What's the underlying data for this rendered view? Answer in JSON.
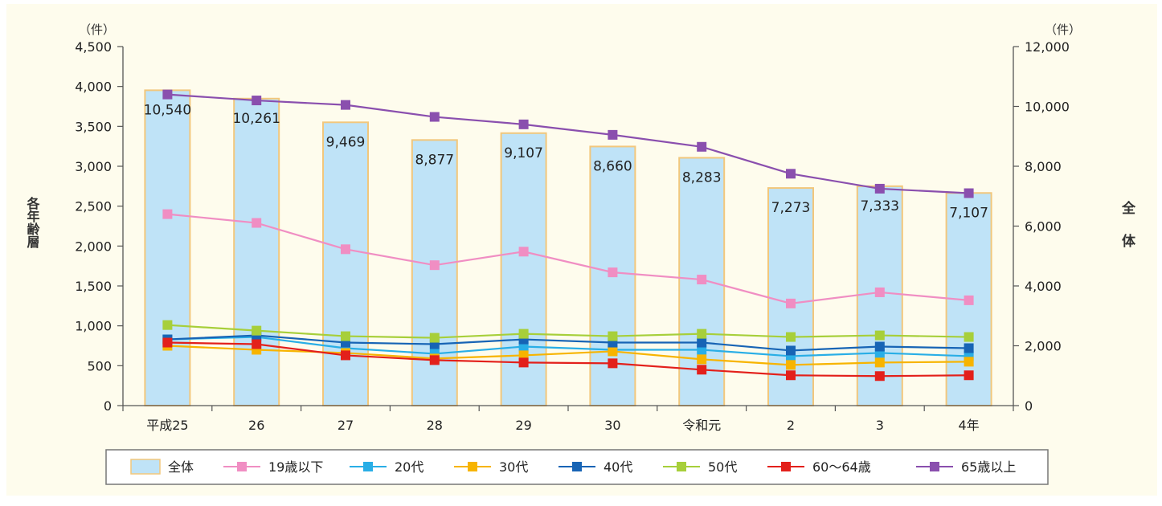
{
  "chart_data": {
    "type": "bar+line",
    "categories": [
      "平成25",
      "26",
      "27",
      "28",
      "29",
      "30",
      "令和元",
      "2",
      "3",
      "4年"
    ],
    "left_axis": {
      "unit": "（件）",
      "title": "各年齢層",
      "ylim": [
        0,
        4500
      ],
      "ticks": [
        0,
        500,
        1000,
        1500,
        2000,
        2500,
        3000,
        3500,
        4000,
        4500
      ],
      "tick_labels": [
        "0",
        "500",
        "1,000",
        "1,500",
        "2,000",
        "2,500",
        "3,000",
        "3,500",
        "4,000",
        "4,500"
      ]
    },
    "right_axis": {
      "unit": "（件）",
      "title": "全体",
      "ylim": [
        0,
        12000
      ],
      "ticks": [
        0,
        2000,
        4000,
        6000,
        8000,
        10000,
        12000
      ],
      "tick_labels": [
        "0",
        "2,000",
        "4,000",
        "6,000",
        "8,000",
        "10,000",
        "12,000"
      ]
    },
    "bars": {
      "name": "全体",
      "axis": "right",
      "color": "#bfe3f7",
      "border": "#f2c77c",
      "values": [
        10540,
        10261,
        9469,
        8877,
        9107,
        8660,
        8283,
        7273,
        7333,
        7107
      ],
      "labels": [
        "10,540",
        "10,261",
        "9,469",
        "8,877",
        "9,107",
        "8,660",
        "8,283",
        "7,273",
        "7,333",
        "7,107"
      ]
    },
    "series": [
      {
        "name": "19歳以下",
        "color": "#f08ec3",
        "values": [
          2400,
          2290,
          1960,
          1760,
          1930,
          1670,
          1580,
          1280,
          1420,
          1320
        ]
      },
      {
        "name": "20代",
        "color": "#29aee6",
        "values": [
          830,
          860,
          720,
          650,
          740,
          700,
          700,
          620,
          660,
          620
        ]
      },
      {
        "name": "30代",
        "color": "#f7b400",
        "values": [
          750,
          700,
          660,
          590,
          630,
          680,
          580,
          510,
          540,
          550
        ]
      },
      {
        "name": "40代",
        "color": "#1764b5",
        "values": [
          830,
          880,
          790,
          770,
          830,
          790,
          790,
          690,
          740,
          720
        ]
      },
      {
        "name": "50代",
        "color": "#a7cf3a",
        "values": [
          1010,
          940,
          870,
          850,
          900,
          870,
          900,
          860,
          880,
          860
        ]
      },
      {
        "name": "60～64歳",
        "color": "#e3201b",
        "values": [
          790,
          770,
          630,
          570,
          540,
          530,
          450,
          380,
          370,
          380
        ]
      },
      {
        "name": "65歳以上",
        "color": "#8a4fae",
        "axis": "right",
        "values": [
          10400,
          10200,
          10050,
          9650,
          9400,
          9050,
          8650,
          7750,
          7250,
          7100
        ]
      }
    ],
    "legend": {
      "position": "bottom",
      "items": [
        "全体",
        "19歳以下",
        "20代",
        "30代",
        "40代",
        "50代",
        "60～64歳",
        "65歳以上"
      ]
    },
    "grid": false
  }
}
